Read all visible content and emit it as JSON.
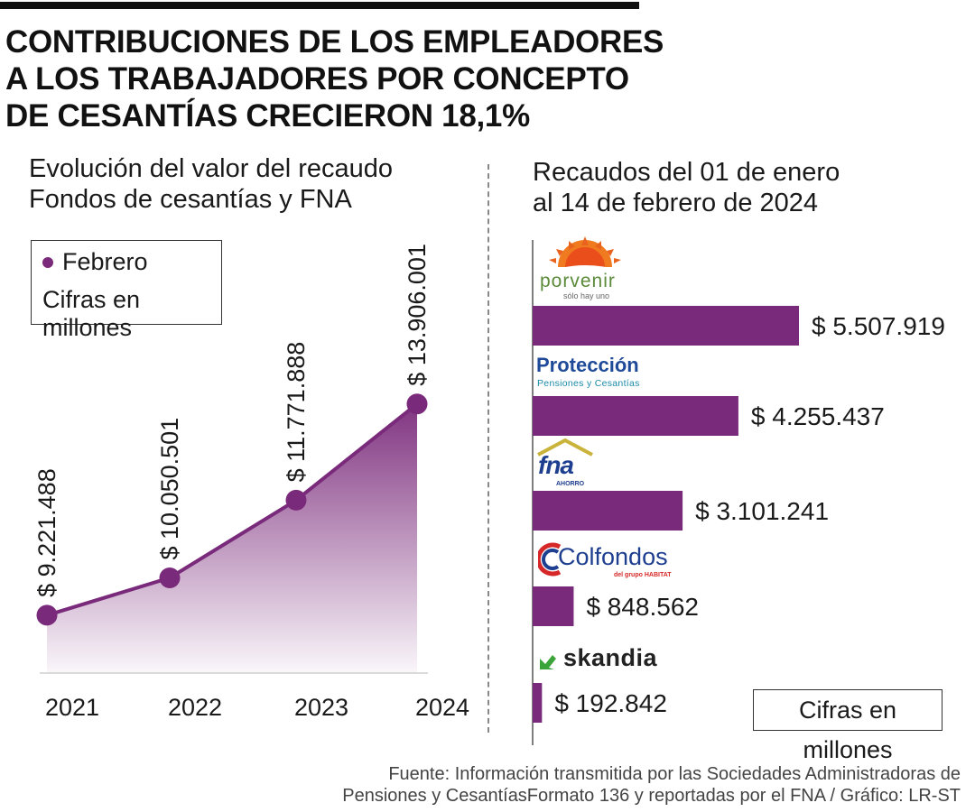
{
  "title": [
    "CONTRIBUCIONES DE LOS EMPLEADORES",
    "A LOS TRABAJADORES POR CONCEPTO",
    "DE CESANTÍAS CRECIERON 18,1%"
  ],
  "colors": {
    "accent": "#7a2a7a",
    "text": "#1a1a1a"
  },
  "left_chart": {
    "subtitle": [
      "Evolución del valor del recaudo",
      "Fondos de cesantías y FNA"
    ],
    "legend_label": "Febrero",
    "legend_note": "Cifras en millones"
  },
  "right_chart": {
    "subtitle": [
      "Recaudos del 01 de enero",
      "al 14 de febrero de 2024"
    ],
    "units_note": "Cifras en millones"
  },
  "logos": {
    "porvenir": {
      "name": "porvenir",
      "tagline": "sólo hay uno"
    },
    "proteccion": {
      "name": "Protección",
      "tagline": "Pensiones y Cesantías"
    },
    "fna": {
      "name": "fna",
      "tagline": "AHORRO"
    },
    "colfondos": {
      "name": "Colfondos",
      "tagline": "del grupo HABITAT"
    },
    "skandia": {
      "name": "skandia"
    }
  },
  "source": [
    "Fuente: Información transmitida por las Sociedades Administradoras de",
    "Pensiones y CesantíasFormato 136 y reportadas por el FNA / Gráfico: LR-ST"
  ],
  "chart_data": [
    {
      "type": "area",
      "categories": [
        "2021",
        "2022",
        "2023",
        "2024"
      ],
      "values": [
        9221488,
        10050501,
        11771888,
        13906001
      ],
      "value_labels": [
        "$ 9.221.488",
        "$ 10.050.501",
        "$ 11.771.888",
        "$ 13.906.001"
      ],
      "title": "Evolución del valor del recaudo Fondos de cesantías y FNA",
      "series_name": "Febrero",
      "units": "Cifras en millones",
      "grid": false,
      "legend_position": "top-left"
    },
    {
      "type": "bar",
      "orientation": "horizontal",
      "categories": [
        "Porvenir",
        "Protección",
        "FNA",
        "Colfondos",
        "Skandia"
      ],
      "values": [
        5507919,
        4255437,
        3101241,
        848562,
        192842
      ],
      "value_labels": [
        "$ 5.507.919",
        "$ 4.255.437",
        "$ 3.101.241",
        "$ 848.562",
        "$ 192.842"
      ],
      "title": "Recaudos del 01 de enero al 14 de febrero de 2024",
      "units": "Cifras en millones",
      "grid": false
    }
  ]
}
